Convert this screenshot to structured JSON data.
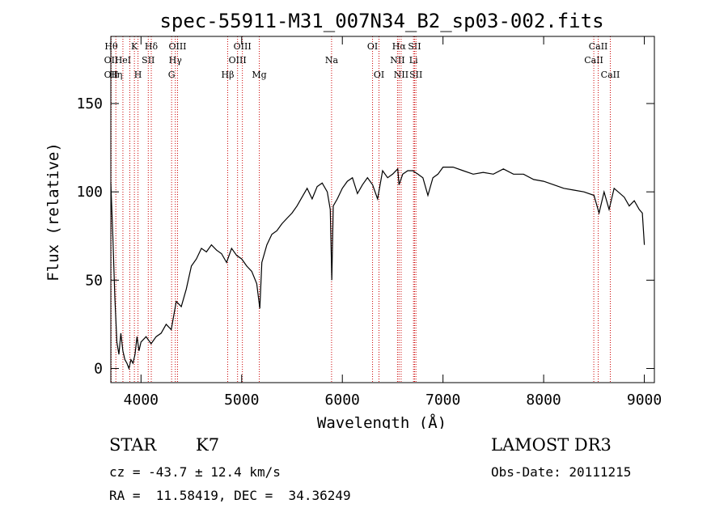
{
  "chart_data": {
    "type": "line",
    "title": "spec-55911-M31_007N34_B2_sp03-002.fits",
    "xlabel": "Wavelength (Å)",
    "ylabel": "Flux (relative)",
    "xlim": [
      3700,
      9100
    ],
    "ylim": [
      -8,
      188
    ],
    "x_ticks": [
      4000,
      5000,
      6000,
      7000,
      8000,
      9000
    ],
    "y_ticks": [
      0,
      50,
      100,
      150
    ],
    "grid": false,
    "line_color": "#000000",
    "marker_color": "#cc0000",
    "series": [
      {
        "x": [
          3700,
          3720,
          3740,
          3760,
          3780,
          3800,
          3820,
          3840,
          3860,
          3880,
          3900,
          3920,
          3940,
          3960,
          3980,
          4000,
          4050,
          4100,
          4150,
          4200,
          4250,
          4300,
          4350,
          4400,
          4450,
          4500,
          4550,
          4600,
          4650,
          4700,
          4750,
          4800,
          4850,
          4900,
          4950,
          5000,
          5050,
          5100,
          5150,
          5180,
          5200,
          5250,
          5300,
          5350,
          5400,
          5450,
          5500,
          5550,
          5600,
          5650,
          5700,
          5750,
          5800,
          5850,
          5880,
          5895,
          5910,
          5950,
          6000,
          6050,
          6100,
          6150,
          6200,
          6250,
          6300,
          6350,
          6400,
          6450,
          6500,
          6550,
          6563,
          6600,
          6650,
          6700,
          6750,
          6800,
          6850,
          6900,
          6950,
          7000,
          7100,
          7200,
          7300,
          7400,
          7500,
          7600,
          7700,
          7800,
          7900,
          8000,
          8100,
          8200,
          8300,
          8400,
          8500,
          8550,
          8600,
          8650,
          8700,
          8800,
          8850,
          8900,
          8950,
          8980,
          9000
        ],
        "y": [
          105,
          75,
          40,
          15,
          8,
          20,
          10,
          5,
          3,
          0,
          5,
          3,
          8,
          18,
          10,
          15,
          18,
          14,
          18,
          20,
          25,
          22,
          38,
          35,
          45,
          58,
          62,
          68,
          66,
          70,
          67,
          65,
          60,
          68,
          64,
          62,
          58,
          55,
          48,
          34,
          60,
          70,
          76,
          78,
          82,
          85,
          88,
          92,
          97,
          102,
          96,
          103,
          105,
          100,
          90,
          50,
          92,
          96,
          102,
          106,
          108,
          99,
          104,
          108,
          104,
          96,
          112,
          108,
          110,
          113,
          104,
          110,
          112,
          112,
          110,
          108,
          98,
          108,
          110,
          114,
          114,
          112,
          110,
          111,
          110,
          113,
          110,
          110,
          107,
          106,
          104,
          102,
          101,
          100,
          98,
          88,
          100,
          90,
          102,
          97,
          92,
          95,
          90,
          88,
          70
        ]
      }
    ],
    "line_markers": [
      {
        "x": 3704,
        "top": "Hθ",
        "mid": "OII",
        "low": "OII"
      },
      {
        "x": 3750,
        "top": "",
        "mid": "",
        "low": "Hη"
      },
      {
        "x": 3820,
        "top": "",
        "mid": "HeI",
        "low": ""
      },
      {
        "x": 3889,
        "top": "",
        "mid": "",
        "low": ""
      },
      {
        "x": 3934,
        "top": "K",
        "mid": "",
        "low": ""
      },
      {
        "x": 3970,
        "top": "",
        "mid": "",
        "low": "H"
      },
      {
        "x": 4072,
        "top": "",
        "mid": "SII",
        "low": ""
      },
      {
        "x": 4102,
        "top": "Hδ",
        "mid": "",
        "low": ""
      },
      {
        "x": 4304,
        "top": "",
        "mid": "",
        "low": "G"
      },
      {
        "x": 4341,
        "top": "",
        "mid": "Hγ",
        "low": ""
      },
      {
        "x": 4363,
        "top": "OIII",
        "mid": "",
        "low": ""
      },
      {
        "x": 4861,
        "top": "",
        "mid": "",
        "low": "Hβ"
      },
      {
        "x": 4959,
        "top": "",
        "mid": "OIII",
        "low": ""
      },
      {
        "x": 5007,
        "top": "OIII",
        "mid": "",
        "low": ""
      },
      {
        "x": 5175,
        "top": "",
        "mid": "",
        "low": "Mg"
      },
      {
        "x": 5893,
        "top": "",
        "mid": "Na",
        "low": ""
      },
      {
        "x": 6300,
        "top": "OI",
        "mid": "",
        "low": ""
      },
      {
        "x": 6364,
        "top": "",
        "mid": "",
        "low": "OI"
      },
      {
        "x": 6548,
        "top": "",
        "mid": "NII",
        "low": ""
      },
      {
        "x": 6563,
        "top": "Hα",
        "mid": "",
        "low": ""
      },
      {
        "x": 6584,
        "top": "",
        "mid": "",
        "low": "NII"
      },
      {
        "x": 6707,
        "top": "",
        "mid": "Li",
        "low": ""
      },
      {
        "x": 6717,
        "top": "SII",
        "mid": "",
        "low": ""
      },
      {
        "x": 6731,
        "top": "",
        "mid": "",
        "low": "SII"
      },
      {
        "x": 8498,
        "top": "",
        "mid": "CaII",
        "low": ""
      },
      {
        "x": 8542,
        "top": "CaII",
        "mid": "",
        "low": ""
      },
      {
        "x": 8662,
        "top": "",
        "mid": "",
        "low": "CaII"
      }
    ]
  },
  "info": {
    "class": "STAR",
    "subclass": "K7",
    "survey": "LAMOST DR3",
    "cz": "cz = -43.7 ± 12.4 km/s",
    "obs_date": "Obs-Date: 20111215",
    "coords": "RA =  11.58419, DEC =  34.36249"
  }
}
